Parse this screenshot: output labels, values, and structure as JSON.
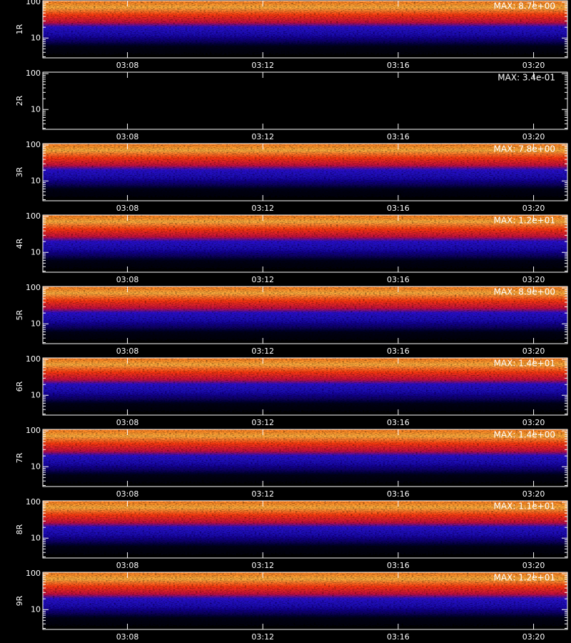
{
  "chart_data": [
    {
      "type": "heatmap",
      "ylabel": "1R",
      "annotation": "MAX: 8.7e+00",
      "filled": true,
      "log_y": true,
      "xlim": [
        185.5,
        201
      ],
      "xticks": [
        {
          "value": 188,
          "label": "03:08"
        },
        {
          "value": 192,
          "label": "03:12"
        },
        {
          "value": 196,
          "label": "03:16"
        },
        {
          "value": 200,
          "label": "03:20"
        }
      ],
      "ylim": [
        2.8,
        110
      ],
      "yticks": [
        10,
        100
      ],
      "yminorticks": [
        3,
        4,
        5,
        6,
        7,
        8,
        9,
        20,
        30,
        40,
        50,
        60,
        70,
        80,
        90
      ]
    },
    {
      "type": "heatmap",
      "ylabel": "2R",
      "annotation": "MAX: 3.4e-01",
      "filled": false,
      "log_y": true,
      "xlim": [
        185.5,
        201
      ],
      "xticks": [
        {
          "value": 188,
          "label": "03:08"
        },
        {
          "value": 192,
          "label": "03:12"
        },
        {
          "value": 196,
          "label": "03:16"
        },
        {
          "value": 200,
          "label": "03:20"
        }
      ],
      "ylim": [
        2.8,
        110
      ],
      "yticks": [
        10,
        100
      ],
      "yminorticks": [
        3,
        4,
        5,
        6,
        7,
        8,
        9,
        20,
        30,
        40,
        50,
        60,
        70,
        80,
        90
      ]
    },
    {
      "type": "heatmap",
      "ylabel": "3R",
      "annotation": "MAX: 7.8e+00",
      "filled": true,
      "log_y": true,
      "xlim": [
        185.5,
        201
      ],
      "xticks": [
        {
          "value": 188,
          "label": "03:08"
        },
        {
          "value": 192,
          "label": "03:12"
        },
        {
          "value": 196,
          "label": "03:16"
        },
        {
          "value": 200,
          "label": "03:20"
        }
      ],
      "ylim": [
        2.8,
        110
      ],
      "yticks": [
        10,
        100
      ],
      "yminorticks": [
        3,
        4,
        5,
        6,
        7,
        8,
        9,
        20,
        30,
        40,
        50,
        60,
        70,
        80,
        90
      ]
    },
    {
      "type": "heatmap",
      "ylabel": "4R",
      "annotation": "MAX: 1.2e+01",
      "filled": true,
      "log_y": true,
      "xlim": [
        185.5,
        201
      ],
      "xticks": [
        {
          "value": 188,
          "label": "03:08"
        },
        {
          "value": 192,
          "label": "03:12"
        },
        {
          "value": 196,
          "label": "03:16"
        },
        {
          "value": 200,
          "label": "03:20"
        }
      ],
      "ylim": [
        2.8,
        110
      ],
      "yticks": [
        10,
        100
      ],
      "yminorticks": [
        3,
        4,
        5,
        6,
        7,
        8,
        9,
        20,
        30,
        40,
        50,
        60,
        70,
        80,
        90
      ]
    },
    {
      "type": "heatmap",
      "ylabel": "5R",
      "annotation": "MAX: 8.9e+00",
      "filled": true,
      "log_y": true,
      "xlim": [
        185.5,
        201
      ],
      "xticks": [
        {
          "value": 188,
          "label": "03:08"
        },
        {
          "value": 192,
          "label": "03:12"
        },
        {
          "value": 196,
          "label": "03:16"
        },
        {
          "value": 200,
          "label": "03:20"
        }
      ],
      "ylim": [
        2.8,
        110
      ],
      "yticks": [
        10,
        100
      ],
      "yminorticks": [
        3,
        4,
        5,
        6,
        7,
        8,
        9,
        20,
        30,
        40,
        50,
        60,
        70,
        80,
        90
      ]
    },
    {
      "type": "heatmap",
      "ylabel": "6R",
      "annotation": "MAX: 1.4e+01",
      "filled": true,
      "log_y": true,
      "xlim": [
        185.5,
        201
      ],
      "xticks": [
        {
          "value": 188,
          "label": "03:08"
        },
        {
          "value": 192,
          "label": "03:12"
        },
        {
          "value": 196,
          "label": "03:16"
        },
        {
          "value": 200,
          "label": "03:20"
        }
      ],
      "ylim": [
        2.8,
        110
      ],
      "yticks": [
        10,
        100
      ],
      "yminorticks": [
        3,
        4,
        5,
        6,
        7,
        8,
        9,
        20,
        30,
        40,
        50,
        60,
        70,
        80,
        90
      ]
    },
    {
      "type": "heatmap",
      "ylabel": "7R",
      "annotation": "MAX: 1.4e+00",
      "filled": true,
      "log_y": true,
      "xlim": [
        185.5,
        201
      ],
      "xticks": [
        {
          "value": 188,
          "label": "03:08"
        },
        {
          "value": 192,
          "label": "03:12"
        },
        {
          "value": 196,
          "label": "03:16"
        },
        {
          "value": 200,
          "label": "03:20"
        }
      ],
      "ylim": [
        2.8,
        110
      ],
      "yticks": [
        10,
        100
      ],
      "yminorticks": [
        3,
        4,
        5,
        6,
        7,
        8,
        9,
        20,
        30,
        40,
        50,
        60,
        70,
        80,
        90
      ]
    },
    {
      "type": "heatmap",
      "ylabel": "8R",
      "annotation": "MAX: 1.1e+01",
      "filled": true,
      "log_y": true,
      "xlim": [
        185.5,
        201
      ],
      "xticks": [
        {
          "value": 188,
          "label": "03:08"
        },
        {
          "value": 192,
          "label": "03:12"
        },
        {
          "value": 196,
          "label": "03:16"
        },
        {
          "value": 200,
          "label": "03:20"
        }
      ],
      "ylim": [
        2.8,
        110
      ],
      "yticks": [
        10,
        100
      ],
      "yminorticks": [
        3,
        4,
        5,
        6,
        7,
        8,
        9,
        20,
        30,
        40,
        50,
        60,
        70,
        80,
        90
      ]
    },
    {
      "type": "heatmap",
      "ylabel": "9R",
      "annotation": "MAX: 1.2e+01",
      "filled": true,
      "log_y": true,
      "xlim": [
        185.5,
        201
      ],
      "xticks": [
        {
          "value": 188,
          "label": "03:08"
        },
        {
          "value": 192,
          "label": "03:12"
        },
        {
          "value": 196,
          "label": "03:16"
        },
        {
          "value": 200,
          "label": "03:20"
        }
      ],
      "ylim": [
        2.8,
        110
      ],
      "yticks": [
        10,
        100
      ],
      "yminorticks": [
        3,
        4,
        5,
        6,
        7,
        8,
        9,
        20,
        30,
        40,
        50,
        60,
        70,
        80,
        90
      ]
    }
  ]
}
